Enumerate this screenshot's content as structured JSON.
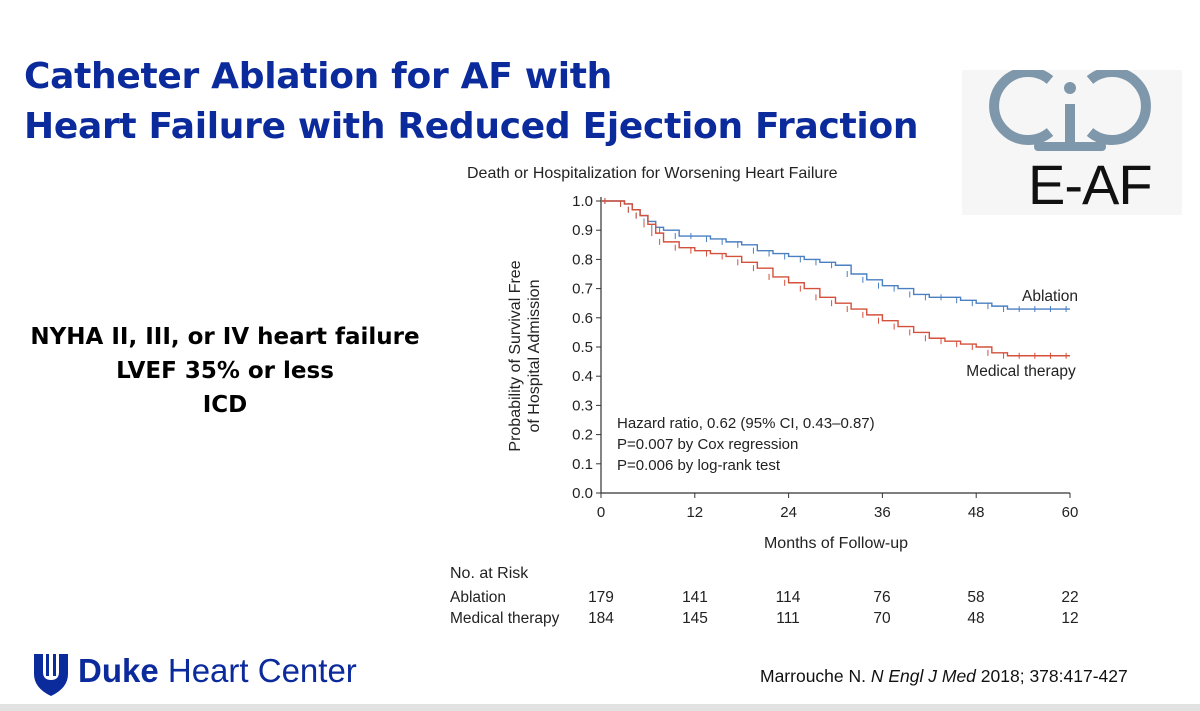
{
  "slide": {
    "title_line1": "Catheter Ablation for AF with",
    "title_line2": "Heart Failure with Reduced Ejection Fraction",
    "criteria": [
      "NYHA II, III, or IV heart failure",
      "LVEF 35% or less",
      "ICD"
    ],
    "logo_text": "E-AF",
    "footer_brand_bold": "Duke",
    "footer_brand_rest": " Heart Center",
    "citation_author": "Marrouche N. ",
    "citation_journal": "N Engl J Med",
    "citation_rest": " 2018; 378:417-427"
  },
  "chart_data": {
    "type": "line",
    "title": "Death or Hospitalization for Worsening Heart Failure",
    "xlabel": "Months of Follow-up",
    "ylabel_line1": "Probability of Survival Free",
    "ylabel_line2": "of Hospital Admission",
    "xlim": [
      0,
      60
    ],
    "ylim": [
      0,
      1
    ],
    "xticks": [
      0,
      12,
      24,
      36,
      48,
      60
    ],
    "yticks": [
      0.0,
      0.1,
      0.2,
      0.3,
      0.4,
      0.5,
      0.6,
      0.7,
      0.8,
      0.9,
      1.0
    ],
    "ytick_labels": [
      "0.0",
      "0.1",
      "0.2",
      "0.3",
      "0.4",
      "0.5",
      "0.6",
      "0.7",
      "0.8",
      "0.9",
      "1.0"
    ],
    "series": [
      {
        "name": "Ablation",
        "color": "#4a7fc1",
        "points": [
          [
            0,
            1.0
          ],
          [
            1,
            1.0
          ],
          [
            3,
            0.99
          ],
          [
            4,
            0.97
          ],
          [
            5,
            0.95
          ],
          [
            6,
            0.93
          ],
          [
            7,
            0.91
          ],
          [
            8,
            0.9
          ],
          [
            10,
            0.88
          ],
          [
            12,
            0.88
          ],
          [
            14,
            0.87
          ],
          [
            16,
            0.86
          ],
          [
            18,
            0.85
          ],
          [
            20,
            0.83
          ],
          [
            22,
            0.82
          ],
          [
            24,
            0.81
          ],
          [
            26,
            0.8
          ],
          [
            28,
            0.79
          ],
          [
            30,
            0.78
          ],
          [
            32,
            0.75
          ],
          [
            34,
            0.73
          ],
          [
            36,
            0.71
          ],
          [
            38,
            0.7
          ],
          [
            40,
            0.68
          ],
          [
            42,
            0.67
          ],
          [
            44,
            0.67
          ],
          [
            46,
            0.66
          ],
          [
            48,
            0.65
          ],
          [
            50,
            0.64
          ],
          [
            52,
            0.63
          ],
          [
            54,
            0.63
          ],
          [
            56,
            0.63
          ],
          [
            58,
            0.63
          ],
          [
            60,
            0.63
          ]
        ]
      },
      {
        "name": "Medical therapy",
        "color": "#d4503a",
        "points": [
          [
            0,
            1.0
          ],
          [
            1,
            1.0
          ],
          [
            3,
            0.99
          ],
          [
            4,
            0.97
          ],
          [
            5,
            0.95
          ],
          [
            6,
            0.92
          ],
          [
            7,
            0.89
          ],
          [
            8,
            0.86
          ],
          [
            10,
            0.84
          ],
          [
            12,
            0.83
          ],
          [
            14,
            0.82
          ],
          [
            16,
            0.81
          ],
          [
            18,
            0.79
          ],
          [
            20,
            0.77
          ],
          [
            22,
            0.74
          ],
          [
            24,
            0.72
          ],
          [
            26,
            0.7
          ],
          [
            28,
            0.67
          ],
          [
            30,
            0.65
          ],
          [
            32,
            0.63
          ],
          [
            34,
            0.61
          ],
          [
            36,
            0.59
          ],
          [
            38,
            0.57
          ],
          [
            40,
            0.55
          ],
          [
            42,
            0.53
          ],
          [
            44,
            0.52
          ],
          [
            46,
            0.51
          ],
          [
            48,
            0.5
          ],
          [
            50,
            0.48
          ],
          [
            52,
            0.47
          ],
          [
            54,
            0.47
          ],
          [
            56,
            0.47
          ],
          [
            58,
            0.47
          ],
          [
            60,
            0.47
          ]
        ]
      }
    ],
    "annotations": [
      "Hazard ratio, 0.62 (95% CI, 0.43–0.87)",
      "P=0.007 by Cox regression",
      "P=0.006 by log-rank test"
    ],
    "at_risk": {
      "header": "No. at Risk",
      "rows": [
        {
          "label": "Ablation",
          "values": [
            179,
            141,
            114,
            76,
            58,
            22
          ]
        },
        {
          "label": "Medical therapy",
          "values": [
            184,
            145,
            111,
            70,
            48,
            12
          ]
        }
      ]
    }
  }
}
